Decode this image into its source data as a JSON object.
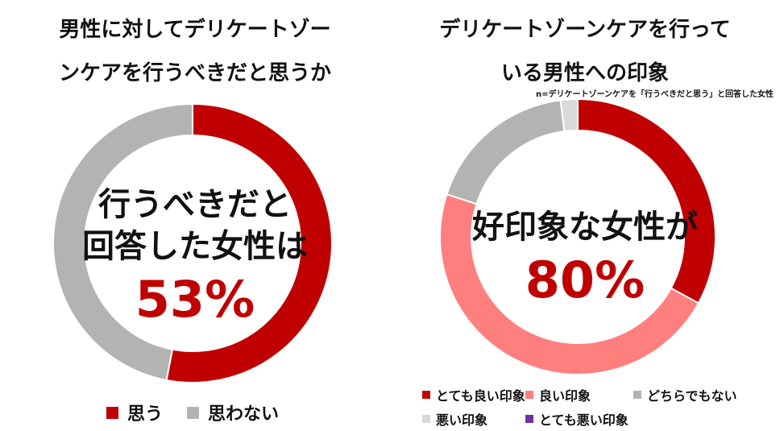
{
  "left": {
    "title_line1": "男性に対してデリケートゾー",
    "title_line2": "ンケアを行うべきだと思うか",
    "center_line1": "行うべきだと",
    "center_line2": "回答した女性は",
    "center_pct": "53%"
  },
  "right": {
    "title_line1": "デリケートゾーンケアを行って",
    "title_line2": "いる男性への印象",
    "note": "n=デリケートゾーンケアを「行うべきだと思う」と回答した女性",
    "center_line1": "好印象な女性が",
    "center_pct": "80%"
  },
  "colors": {
    "dark_red": "#c00000",
    "salmon": "#ff7f7f",
    "gray": "#b3b3b3",
    "light_gray": "#d9d9d9",
    "purple": "#7030a0"
  },
  "chart_data": [
    {
      "type": "pie",
      "donut": true,
      "title": "男性に対してデリケートゾーンケアを行うべきだと思うか",
      "categories": [
        "思う",
        "思わない"
      ],
      "values": [
        53,
        47
      ],
      "legend": "bottom"
    },
    {
      "type": "pie",
      "donut": true,
      "title": "デリケートゾーンケアを行っている男性への印象",
      "categories": [
        "とても良い印象",
        "良い印象",
        "どちらでもない",
        "悪い印象",
        "とても悪い印象"
      ],
      "values": [
        33,
        47,
        18,
        2,
        0
      ],
      "legend": "bottom"
    }
  ]
}
